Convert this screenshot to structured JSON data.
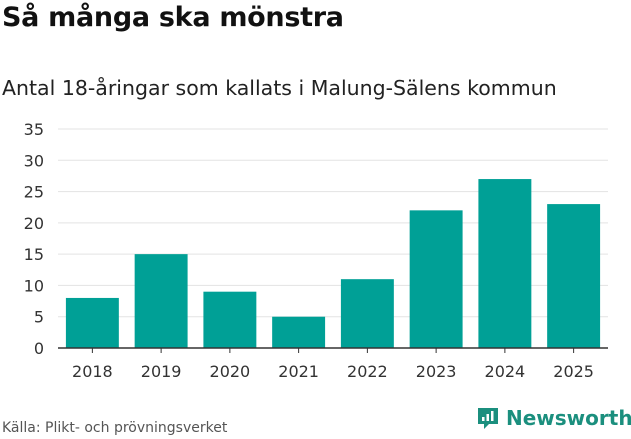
{
  "title": "Så många ska mönstra",
  "subtitle": "Antal 18-åringar som kallats i Malung-Sälens kommun",
  "source": "Källa: Plikt- och prövningsverket",
  "brand": "Newsworthy",
  "colors": {
    "bar": "#00a096",
    "grid": "#e3e3e3",
    "axis": "#333333",
    "brand": "#1b8f7e"
  },
  "chart_data": {
    "type": "bar",
    "categories": [
      "2018",
      "2019",
      "2020",
      "2021",
      "2022",
      "2023",
      "2024",
      "2025"
    ],
    "values": [
      8,
      15,
      9,
      5,
      11,
      22,
      27,
      23
    ],
    "ylim": [
      0,
      35
    ],
    "yticks": [
      0,
      5,
      10,
      15,
      20,
      25,
      30,
      35
    ],
    "grid": true,
    "legend": false
  }
}
